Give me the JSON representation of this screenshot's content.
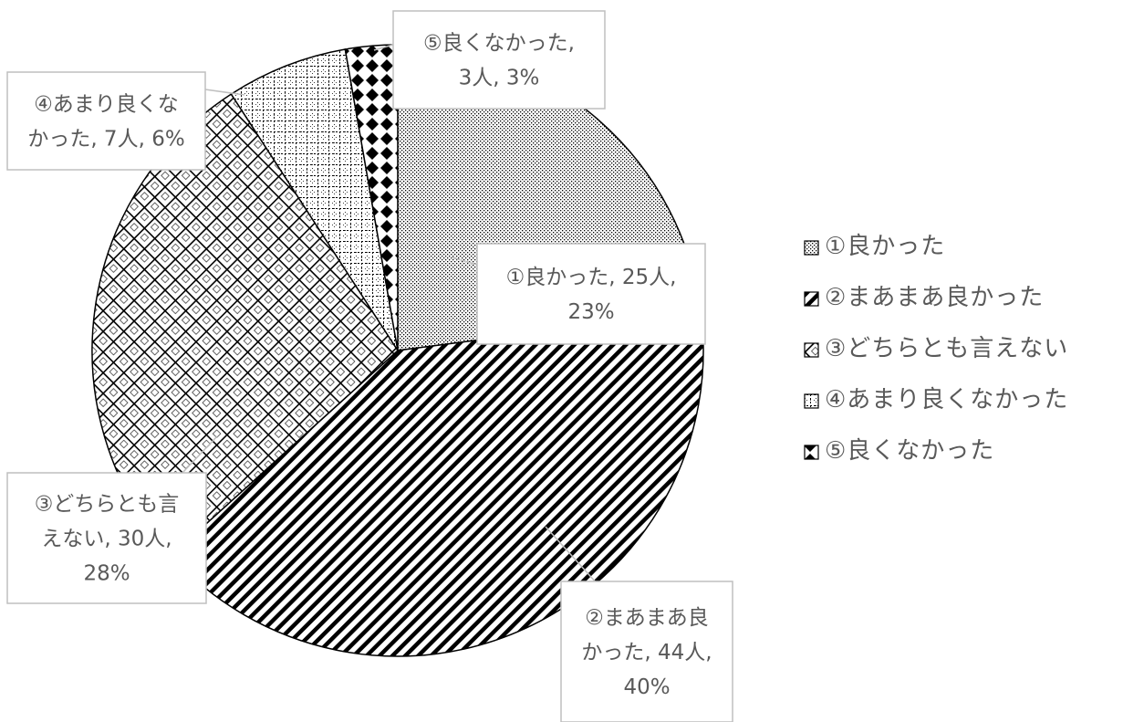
{
  "chart_data": {
    "type": "pie",
    "title": "",
    "slices": [
      {
        "name": "①良かった",
        "count": 25,
        "count_text": "25人",
        "percent": 23,
        "percent_text": "23%",
        "label_lines": [
          "①良かった, 25人,",
          "23%"
        ],
        "pattern": "dots"
      },
      {
        "name": "②まあまあ良かった",
        "count": 44,
        "count_text": "44人",
        "percent": 40,
        "percent_text": "40%",
        "label_lines": [
          "②まあまあ良",
          "かった, 44人,",
          "40%"
        ],
        "pattern": "diagonal-stripes"
      },
      {
        "name": "③どちらとも言えない",
        "count": 30,
        "count_text": "30人",
        "percent": 28,
        "percent_text": "28%",
        "label_lines": [
          "③どちらとも言",
          "えない, 30人,",
          "28%"
        ],
        "pattern": "lattice"
      },
      {
        "name": "④あまり良くなかった",
        "count": 7,
        "count_text": "7人",
        "percent": 6,
        "percent_text": "6%",
        "label_lines": [
          "④あまり良くな",
          "かった, 7人, 6%"
        ],
        "pattern": "dashed-grid"
      },
      {
        "name": "⑤良くなかった",
        "count": 3,
        "count_text": "3人",
        "percent": 3,
        "percent_text": "3%",
        "label_lines": [
          "⑤良くなかった,",
          "3人, 3%"
        ],
        "pattern": "diamonds"
      }
    ],
    "legend": {
      "placement": "right",
      "entries": [
        "①良かった",
        "②まあまあ良かった",
        "③どちらとも言えない",
        "④あまり良くなかった",
        "⑤良くなかった"
      ]
    },
    "colors": {
      "outline": "#000000",
      "text": "#595959",
      "label_border": "#bfbfbf"
    }
  }
}
